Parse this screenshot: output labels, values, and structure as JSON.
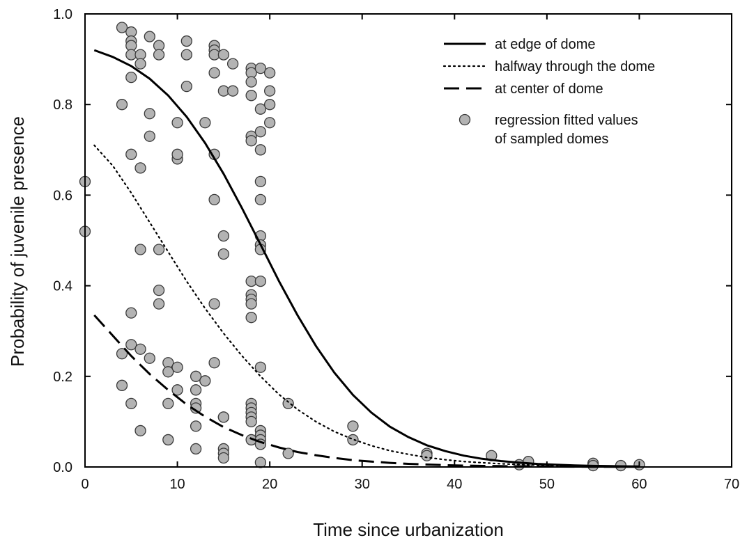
{
  "chart_data": {
    "type": "scatter",
    "title": "",
    "xlabel": "Time since urbanization",
    "ylabel": "Probability of juvenile presence",
    "xlim": [
      0,
      70
    ],
    "ylim": [
      0,
      1.0
    ],
    "x_ticks": [
      "0",
      "10",
      "20",
      "30",
      "40",
      "50",
      "60",
      "70"
    ],
    "y_ticks": [
      "0.0",
      "0.2",
      "0.4",
      "0.6",
      "0.8",
      "1.0"
    ],
    "grid": false,
    "legend_position": "top-right",
    "series": [
      {
        "name": "at edge of dome",
        "style": "solid",
        "kind": "line",
        "x": [
          1,
          3,
          5,
          7,
          9,
          11,
          13,
          15,
          17,
          19,
          21,
          23,
          25,
          27,
          29,
          31,
          33,
          35,
          37,
          39,
          41,
          43,
          45,
          47,
          49,
          51,
          53,
          55,
          57,
          60
        ],
        "y": [
          0.92,
          0.905,
          0.885,
          0.857,
          0.82,
          0.773,
          0.715,
          0.647,
          0.571,
          0.491,
          0.41,
          0.335,
          0.267,
          0.208,
          0.159,
          0.12,
          0.089,
          0.066,
          0.048,
          0.035,
          0.025,
          0.018,
          0.013,
          0.0095,
          0.0068,
          0.0049,
          0.0035,
          0.0025,
          0.0018,
          0.0011
        ]
      },
      {
        "name": "halfway through the dome",
        "style": "dotted",
        "kind": "line",
        "x": [
          1,
          3,
          5,
          7,
          9,
          11,
          13,
          15,
          17,
          19,
          21,
          23,
          25,
          27,
          29,
          31,
          33,
          35,
          37,
          39,
          41,
          43,
          45,
          47,
          49,
          51,
          53,
          55,
          57,
          60
        ],
        "y": [
          0.71,
          0.665,
          0.605,
          0.54,
          0.475,
          0.41,
          0.35,
          0.295,
          0.245,
          0.2,
          0.16,
          0.127,
          0.1,
          0.078,
          0.061,
          0.047,
          0.036,
          0.028,
          0.021,
          0.016,
          0.012,
          0.0093,
          0.007,
          0.0053,
          0.004,
          0.003,
          0.0023,
          0.0017,
          0.0013,
          0.0008
        ]
      },
      {
        "name": "at center of dome",
        "style": "dashed",
        "kind": "line",
        "x": [
          1,
          3,
          5,
          7,
          9,
          11,
          13,
          15,
          17,
          19,
          21,
          23,
          25,
          27,
          29,
          31,
          33,
          35,
          37,
          39,
          41,
          43,
          45,
          47,
          49,
          51,
          53,
          55,
          57,
          60
        ],
        "y": [
          0.335,
          0.29,
          0.245,
          0.205,
          0.17,
          0.138,
          0.111,
          0.088,
          0.07,
          0.055,
          0.043,
          0.033,
          0.026,
          0.02,
          0.015,
          0.012,
          0.009,
          0.0069,
          0.0053,
          0.004,
          0.003,
          0.0023,
          0.0018,
          0.0013,
          0.001,
          0.0008,
          0.0006,
          0.0005,
          0.0004,
          0.0003
        ]
      },
      {
        "name": "regression fitted values of sampled domes",
        "kind": "points",
        "points": [
          [
            0,
            0.63
          ],
          [
            0,
            0.52
          ],
          [
            4,
            0.97
          ],
          [
            4,
            0.8
          ],
          [
            4,
            0.25
          ],
          [
            4,
            0.18
          ],
          [
            5,
            0.96
          ],
          [
            5,
            0.94
          ],
          [
            5,
            0.93
          ],
          [
            5,
            0.91
          ],
          [
            5,
            0.86
          ],
          [
            5,
            0.69
          ],
          [
            5,
            0.34
          ],
          [
            5,
            0.27
          ],
          [
            5,
            0.14
          ],
          [
            6,
            0.91
          ],
          [
            6,
            0.89
          ],
          [
            6,
            0.66
          ],
          [
            6,
            0.48
          ],
          [
            6,
            0.26
          ],
          [
            6,
            0.08
          ],
          [
            7,
            0.95
          ],
          [
            7,
            0.78
          ],
          [
            7,
            0.73
          ],
          [
            7,
            0.24
          ],
          [
            8,
            0.93
          ],
          [
            8,
            0.91
          ],
          [
            8,
            0.48
          ],
          [
            8,
            0.39
          ],
          [
            8,
            0.36
          ],
          [
            9,
            0.23
          ],
          [
            9,
            0.21
          ],
          [
            9,
            0.14
          ],
          [
            9,
            0.06
          ],
          [
            10,
            0.76
          ],
          [
            10,
            0.68
          ],
          [
            10,
            0.69
          ],
          [
            10,
            0.22
          ],
          [
            10,
            0.17
          ],
          [
            11,
            0.94
          ],
          [
            11,
            0.91
          ],
          [
            11,
            0.84
          ],
          [
            12,
            0.2
          ],
          [
            12,
            0.17
          ],
          [
            12,
            0.14
          ],
          [
            12,
            0.13
          ],
          [
            12,
            0.09
          ],
          [
            12,
            0.04
          ],
          [
            13,
            0.76
          ],
          [
            13,
            0.19
          ],
          [
            14,
            0.93
          ],
          [
            14,
            0.92
          ],
          [
            14,
            0.91
          ],
          [
            14,
            0.87
          ],
          [
            14,
            0.69
          ],
          [
            14,
            0.59
          ],
          [
            14,
            0.36
          ],
          [
            14,
            0.23
          ],
          [
            15,
            0.91
          ],
          [
            15,
            0.83
          ],
          [
            15,
            0.51
          ],
          [
            15,
            0.47
          ],
          [
            15,
            0.11
          ],
          [
            15,
            0.11
          ],
          [
            15,
            0.04
          ],
          [
            15,
            0.03
          ],
          [
            15,
            0.02
          ],
          [
            16,
            0.89
          ],
          [
            16,
            0.83
          ],
          [
            18,
            0.88
          ],
          [
            18,
            0.87
          ],
          [
            18,
            0.85
          ],
          [
            18,
            0.82
          ],
          [
            18,
            0.73
          ],
          [
            18,
            0.72
          ],
          [
            18,
            0.41
          ],
          [
            18,
            0.38
          ],
          [
            18,
            0.37
          ],
          [
            18,
            0.36
          ],
          [
            18,
            0.33
          ],
          [
            18,
            0.14
          ],
          [
            18,
            0.13
          ],
          [
            18,
            0.12
          ],
          [
            18,
            0.11
          ],
          [
            18,
            0.1
          ],
          [
            18,
            0.06
          ],
          [
            19,
            0.88
          ],
          [
            19,
            0.79
          ],
          [
            19,
            0.74
          ],
          [
            19,
            0.7
          ],
          [
            19,
            0.63
          ],
          [
            19,
            0.59
          ],
          [
            19,
            0.51
          ],
          [
            19,
            0.49
          ],
          [
            19,
            0.48
          ],
          [
            19,
            0.41
          ],
          [
            19,
            0.22
          ],
          [
            19,
            0.08
          ],
          [
            19,
            0.07
          ],
          [
            19,
            0.06
          ],
          [
            19,
            0.05
          ],
          [
            19,
            0.01
          ],
          [
            20,
            0.87
          ],
          [
            20,
            0.83
          ],
          [
            20,
            0.8
          ],
          [
            20,
            0.76
          ],
          [
            22,
            0.14
          ],
          [
            22,
            0.03
          ],
          [
            29,
            0.09
          ],
          [
            29,
            0.06
          ],
          [
            37,
            0.03
          ],
          [
            37,
            0.025
          ],
          [
            44,
            0.025
          ],
          [
            47,
            0.005
          ],
          [
            48,
            0.012
          ],
          [
            55,
            0.008
          ],
          [
            55,
            0.003
          ],
          [
            58,
            0.003
          ],
          [
            60,
            0.005
          ]
        ]
      }
    ],
    "colors": {
      "marker_fill": "#b3b3b3",
      "marker_stroke": "#3a3a3a",
      "line": "#000000",
      "axis": "#000000"
    }
  }
}
